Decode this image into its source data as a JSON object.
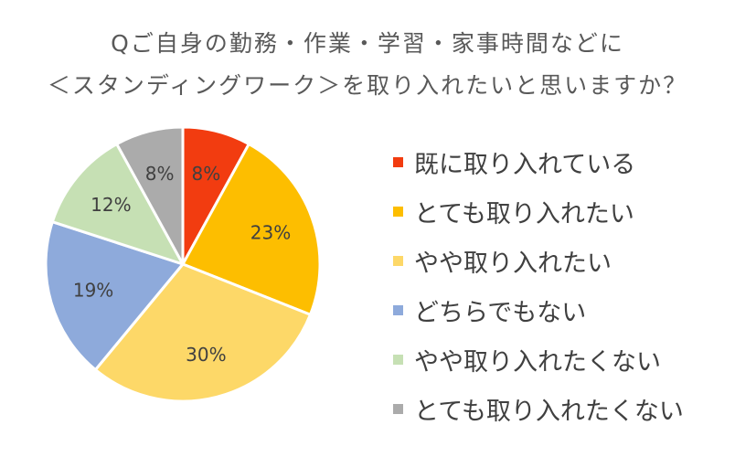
{
  "chart_data": {
    "type": "pie",
    "title_lines": [
      "Qご自身の勤務・作業・学習・家事時間などに",
      "＜スタンディングワーク＞を取り入れたいと思いますか？"
    ],
    "slices": [
      {
        "label": "既に取り入れている",
        "value": 8,
        "display": "8%",
        "color": "#F23C10"
      },
      {
        "label": "とても取り入れたい",
        "value": 23,
        "display": "23%",
        "color": "#FDBE00"
      },
      {
        "label": "やや取り入れたい",
        "value": 30,
        "display": "30%",
        "color": "#FDD868"
      },
      {
        "label": "どちらでもない",
        "value": 19,
        "display": "19%",
        "color": "#8EAADB"
      },
      {
        "label": "やや取り入れたくない",
        "value": 12,
        "display": "12%",
        "color": "#C6E0B4"
      },
      {
        "label": "とても取り入れたくない",
        "value": 8,
        "display": "8%",
        "color": "#ABABAB"
      }
    ],
    "start": "12 o'clock",
    "direction": "clockwise",
    "legend_placement": "right"
  }
}
